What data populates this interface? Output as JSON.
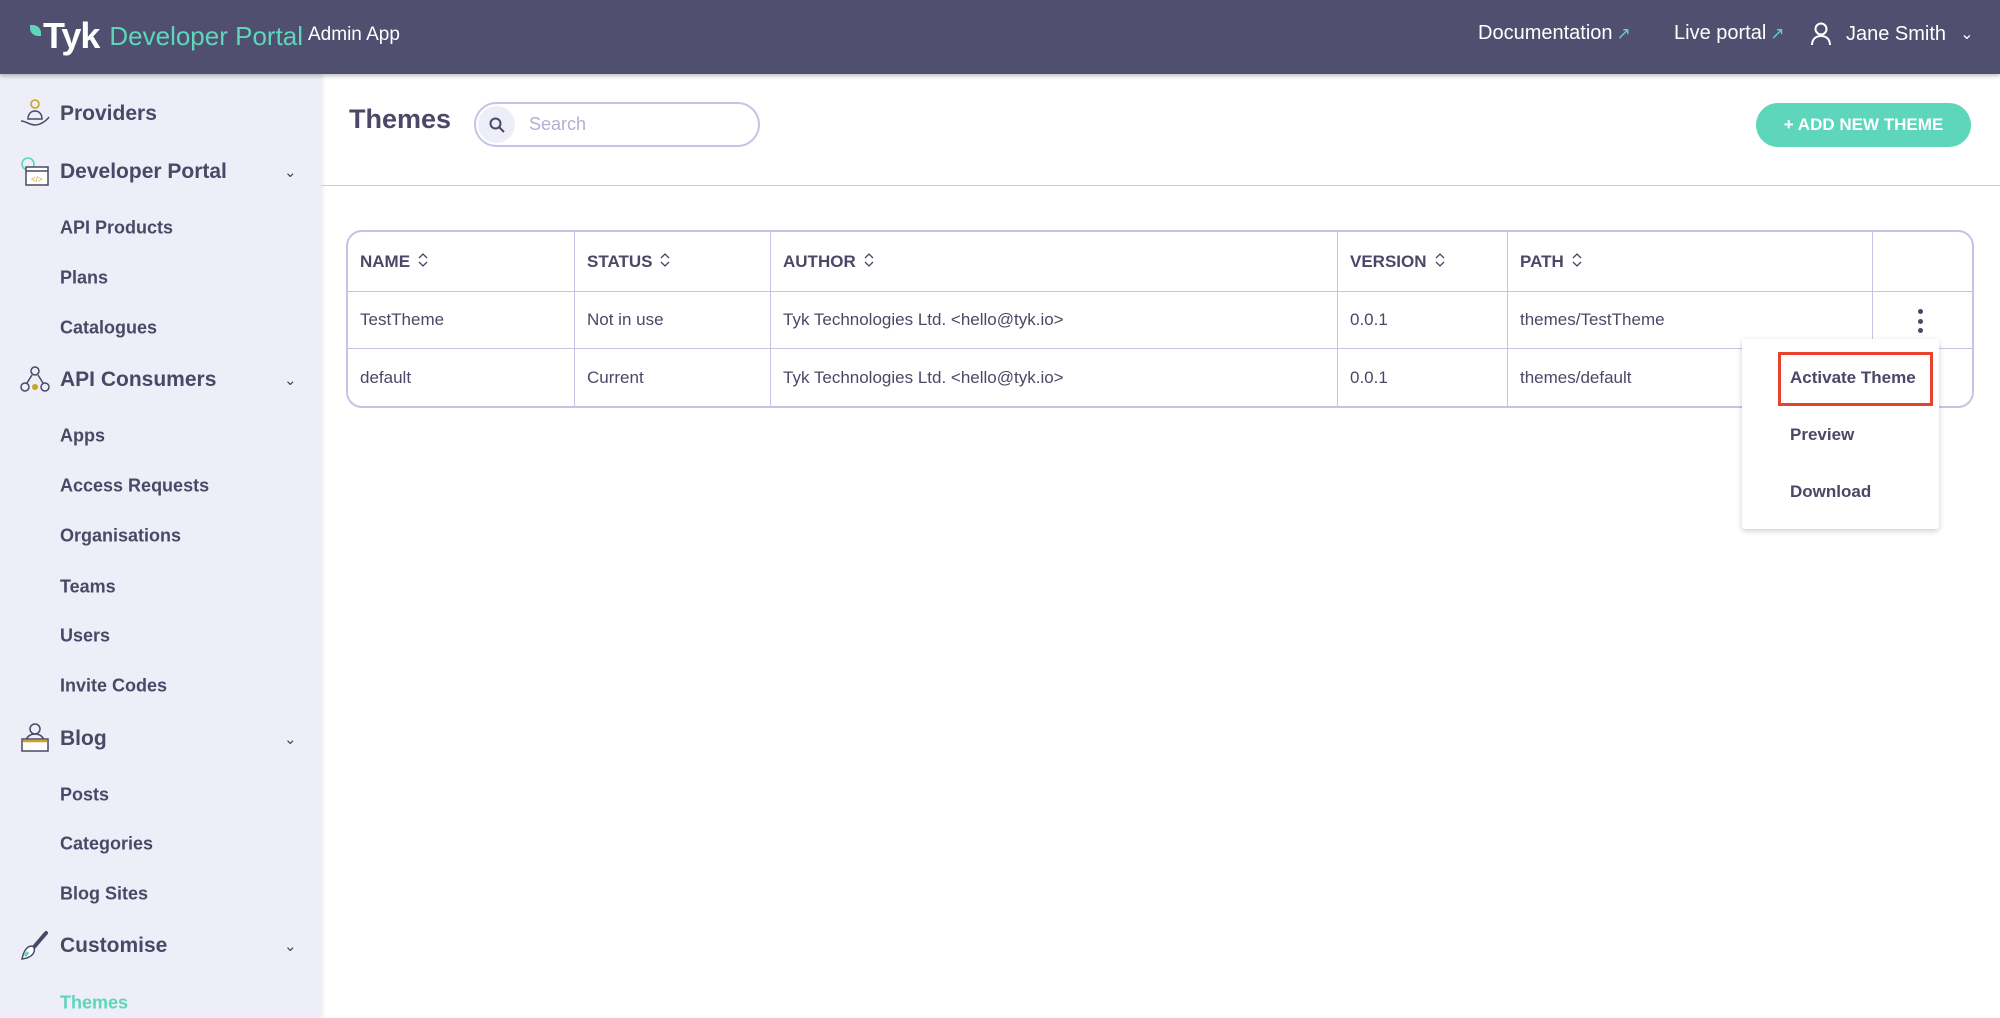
{
  "header": {
    "logo_text": "Tyk",
    "product": "Developer Portal",
    "app": "Admin App",
    "links": [
      {
        "label": "Documentation",
        "icon": "external-link-icon"
      },
      {
        "label": "Live portal",
        "icon": "external-link-icon"
      }
    ],
    "user": "Jane Smith"
  },
  "sidebar": [
    {
      "type": "section",
      "label": "Providers",
      "icon": "providers-icon"
    },
    {
      "type": "section",
      "label": "Developer Portal",
      "icon": "developer-portal-icon",
      "chevron": true
    },
    {
      "type": "item",
      "label": "API Products"
    },
    {
      "type": "item",
      "label": "Plans"
    },
    {
      "type": "item",
      "label": "Catalogues"
    },
    {
      "type": "section",
      "label": "API Consumers",
      "icon": "api-consumers-icon",
      "chevron": true
    },
    {
      "type": "item",
      "label": "Apps"
    },
    {
      "type": "item",
      "label": "Access Requests"
    },
    {
      "type": "item",
      "label": "Organisations"
    },
    {
      "type": "item",
      "label": "Teams"
    },
    {
      "type": "item",
      "label": "Users"
    },
    {
      "type": "item",
      "label": "Invite Codes"
    },
    {
      "type": "section",
      "label": "Blog",
      "icon": "blog-icon",
      "chevron": true
    },
    {
      "type": "item",
      "label": "Posts"
    },
    {
      "type": "item",
      "label": "Categories"
    },
    {
      "type": "item",
      "label": "Blog Sites"
    },
    {
      "type": "section",
      "label": "Customise",
      "icon": "brush-icon",
      "chevron": true
    },
    {
      "type": "item",
      "label": "Themes",
      "active": true
    }
  ],
  "page": {
    "title": "Themes",
    "search_placeholder": "Search",
    "add_button": "+ ADD NEW THEME"
  },
  "table": {
    "columns": [
      "NAME",
      "STATUS",
      "AUTHOR",
      "VERSION",
      "PATH"
    ],
    "rows": [
      [
        "TestTheme",
        "Not in use",
        "Tyk Technologies Ltd. <hello@tyk.io>",
        "0.0.1",
        "themes/TestTheme"
      ],
      [
        "default",
        "Current",
        "Tyk Technologies Ltd. <hello@tyk.io>",
        "0.0.1",
        "themes/default"
      ]
    ]
  },
  "row_menu": {
    "items": [
      "Activate Theme",
      "Preview",
      "Download"
    ],
    "highlighted": "Activate Theme"
  },
  "colors": {
    "topbar": "#514f6f",
    "accent": "#5dd6bb",
    "sidebar": "#eeeef8",
    "highlight": "#e8432e"
  }
}
